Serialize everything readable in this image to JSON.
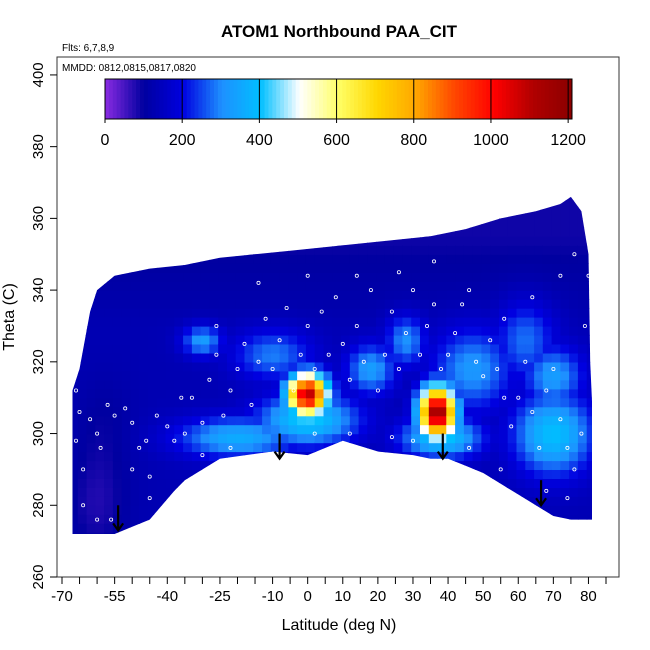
{
  "chart_data": {
    "type": "heatmap",
    "title": "ATOM1 Northbound PAA_CIT",
    "subtitle_lines": [
      "Flts: 6,7,8,9",
      "MMDD: 0812,0815,0817,0820"
    ],
    "xlabel": "Latitude (deg N)",
    "ylabel": "Theta (C)",
    "xlim": [
      -70,
      85
    ],
    "ylim": [
      260,
      405
    ],
    "x_ticks": [
      -70,
      -55,
      -40,
      -25,
      -10,
      0,
      10,
      20,
      30,
      40,
      50,
      60,
      70,
      80
    ],
    "y_ticks": [
      260,
      280,
      300,
      320,
      340,
      360,
      380,
      400
    ],
    "grid": false,
    "colorbar": {
      "placement": "top-inside",
      "range": [
        0,
        1210
      ],
      "ticks": [
        0,
        200,
        400,
        600,
        800,
        1000,
        1200
      ],
      "colors": [
        "#8a2be2",
        "#0000a0",
        "#0000e0",
        "#1e90ff",
        "#00bfff",
        "#ffffff",
        "#ffff66",
        "#ffd700",
        "#ffa500",
        "#ff4500",
        "#ff0000",
        "#b00000",
        "#8b0000"
      ]
    },
    "field": {
      "background_value": 130,
      "upper_boundary": [
        [
          -67,
          312
        ],
        [
          -65,
          318
        ],
        [
          -62,
          334
        ],
        [
          -60,
          340
        ],
        [
          -55,
          344
        ],
        [
          -45,
          346
        ],
        [
          -35,
          347
        ],
        [
          -25,
          349
        ],
        [
          -15,
          350
        ],
        [
          -5,
          351
        ],
        [
          5,
          352
        ],
        [
          15,
          353
        ],
        [
          25,
          354
        ],
        [
          35,
          355
        ],
        [
          45,
          357
        ],
        [
          55,
          360
        ],
        [
          65,
          362
        ],
        [
          72,
          364
        ],
        [
          75,
          366
        ],
        [
          78,
          362
        ],
        [
          80,
          350
        ],
        [
          80.5,
          320
        ],
        [
          81,
          309
        ]
      ],
      "lower_boundary": [
        [
          -67,
          272
        ],
        [
          -55,
          272
        ],
        [
          -45,
          276
        ],
        [
          -38,
          284
        ],
        [
          -35,
          287
        ],
        [
          -25,
          293
        ],
        [
          -10,
          295
        ],
        [
          0,
          294
        ],
        [
          10,
          298
        ],
        [
          20,
          295
        ],
        [
          30,
          294
        ],
        [
          35,
          293
        ],
        [
          40,
          293
        ],
        [
          45,
          291
        ],
        [
          50,
          289
        ],
        [
          55,
          286
        ],
        [
          60,
          283
        ],
        [
          65,
          280
        ],
        [
          70,
          277
        ],
        [
          75,
          276
        ],
        [
          81,
          276
        ]
      ],
      "blobs": [
        {
          "lat": 0,
          "theta": 311,
          "value": 1100,
          "sx": 4,
          "sy": 4
        },
        {
          "lat": 37,
          "theta": 306,
          "value": 1180,
          "sx": 3.5,
          "sy": 5
        },
        {
          "lat": 0,
          "theta": 304,
          "value": 420,
          "sx": 10,
          "sy": 5
        },
        {
          "lat": -20,
          "theta": 299,
          "value": 360,
          "sx": 12,
          "sy": 4
        },
        {
          "lat": 38,
          "theta": 299,
          "value": 420,
          "sx": 8,
          "sy": 4
        },
        {
          "lat": 47,
          "theta": 318,
          "value": 320,
          "sx": 8,
          "sy": 8
        },
        {
          "lat": 70,
          "theta": 300,
          "value": 400,
          "sx": 8,
          "sy": 8
        },
        {
          "lat": 70,
          "theta": 316,
          "value": 330,
          "sx": 6,
          "sy": 6
        },
        {
          "lat": 18,
          "theta": 318,
          "value": 330,
          "sx": 5,
          "sy": 5
        },
        {
          "lat": 28,
          "theta": 326,
          "value": 310,
          "sx": 4,
          "sy": 5
        },
        {
          "lat": -30,
          "theta": 326,
          "value": 330,
          "sx": 4,
          "sy": 3
        },
        {
          "lat": -10,
          "theta": 322,
          "value": 290,
          "sx": 8,
          "sy": 5
        },
        {
          "lat": 62,
          "theta": 326,
          "value": 280,
          "sx": 6,
          "sy": 8
        },
        {
          "lat": -58,
          "theta": 302,
          "value": 100,
          "sx": 6,
          "sy": 10
        },
        {
          "lat": -60,
          "theta": 280,
          "value": 80,
          "sx": 6,
          "sy": 10
        }
      ]
    },
    "arrows": [
      {
        "lat": -54,
        "theta_start": 280,
        "theta_end": 273
      },
      {
        "lat": -8,
        "theta_start": 300,
        "theta_end": 293
      },
      {
        "lat": 38.5,
        "theta_start": 300,
        "theta_end": 293
      },
      {
        "lat": 66.5,
        "theta_start": 287,
        "theta_end": 280
      }
    ],
    "sample_points": [
      [
        -66,
        312
      ],
      [
        -65,
        306
      ],
      [
        -66,
        298
      ],
      [
        -64,
        290
      ],
      [
        -62,
        304
      ],
      [
        -60,
        300
      ],
      [
        -59,
        296
      ],
      [
        -57,
        308
      ],
      [
        -55,
        305
      ],
      [
        -52,
        307
      ],
      [
        -50,
        303
      ],
      [
        -48,
        296
      ],
      [
        -46,
        298
      ],
      [
        -45,
        288
      ],
      [
        -43,
        305
      ],
      [
        -40,
        302
      ],
      [
        -38,
        298
      ],
      [
        -35,
        300
      ],
      [
        -33,
        310
      ],
      [
        -30,
        303
      ],
      [
        -28,
        315
      ],
      [
        -26,
        322
      ],
      [
        -24,
        305
      ],
      [
        -22,
        312
      ],
      [
        -20,
        318
      ],
      [
        -18,
        325
      ],
      [
        -16,
        308
      ],
      [
        -14,
        320
      ],
      [
        -12,
        332
      ],
      [
        -10,
        318
      ],
      [
        -8,
        326
      ],
      [
        -6,
        335
      ],
      [
        -4,
        312
      ],
      [
        -2,
        322
      ],
      [
        0,
        330
      ],
      [
        2,
        318
      ],
      [
        4,
        334
      ],
      [
        6,
        322
      ],
      [
        8,
        338
      ],
      [
        10,
        325
      ],
      [
        12,
        315
      ],
      [
        14,
        330
      ],
      [
        16,
        320
      ],
      [
        18,
        340
      ],
      [
        20,
        312
      ],
      [
        22,
        322
      ],
      [
        24,
        334
      ],
      [
        26,
        318
      ],
      [
        28,
        328
      ],
      [
        30,
        340
      ],
      [
        32,
        322
      ],
      [
        34,
        330
      ],
      [
        36,
        336
      ],
      [
        38,
        318
      ],
      [
        40,
        322
      ],
      [
        42,
        328
      ],
      [
        44,
        336
      ],
      [
        46,
        340
      ],
      [
        48,
        320
      ],
      [
        50,
        316
      ],
      [
        52,
        326
      ],
      [
        54,
        318
      ],
      [
        56,
        310
      ],
      [
        58,
        302
      ],
      [
        60,
        310
      ],
      [
        62,
        320
      ],
      [
        64,
        306
      ],
      [
        66,
        296
      ],
      [
        68,
        312
      ],
      [
        70,
        318
      ],
      [
        72,
        304
      ],
      [
        74,
        296
      ],
      [
        76,
        290
      ],
      [
        78,
        300
      ],
      [
        79,
        330
      ],
      [
        80,
        344
      ],
      [
        -60,
        276
      ],
      [
        -56,
        276
      ],
      [
        -45,
        282
      ],
      [
        -30,
        294
      ],
      [
        -22,
        296
      ],
      [
        2,
        300
      ],
      [
        12,
        300
      ],
      [
        24,
        299
      ],
      [
        30,
        298
      ],
      [
        46,
        296
      ],
      [
        55,
        290
      ],
      [
        68,
        284
      ],
      [
        74,
        282
      ],
      [
        -64,
        280
      ],
      [
        -50,
        290
      ],
      [
        -36,
        310
      ],
      [
        -26,
        330
      ],
      [
        -14,
        342
      ],
      [
        0,
        344
      ],
      [
        14,
        344
      ],
      [
        26,
        345
      ],
      [
        36,
        348
      ],
      [
        56,
        332
      ],
      [
        64,
        338
      ],
      [
        72,
        344
      ],
      [
        76,
        350
      ]
    ]
  }
}
